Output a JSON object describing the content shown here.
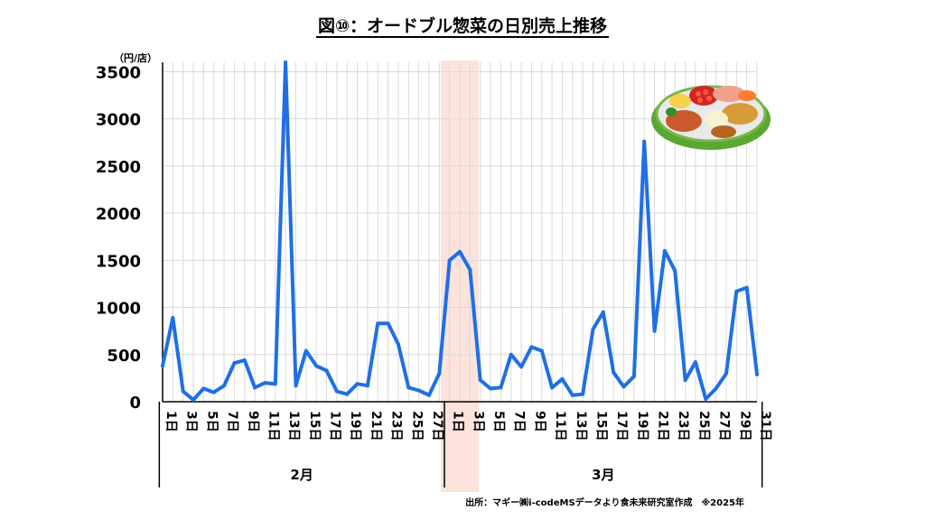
{
  "title": "図⑩：オードブル惣菜の日別売上推移",
  "source": "出所：マギー㈱i-codeMSデータより食未来研究室作成　※2025年",
  "illustration": "hors-d-oeuvre-platter-icon",
  "colors": {
    "line": "#1f6fe6",
    "highlight": "#fde3dc",
    "grid": "#d9d9d9"
  },
  "chart_data": {
    "type": "line",
    "ylabel": "（円/店）",
    "ylim": [
      0,
      3600
    ],
    "yticks": [
      0,
      500,
      1000,
      1500,
      2000,
      2500,
      3000,
      3500
    ],
    "grid": true,
    "highlight_range": [
      "3月1日",
      "3月3日"
    ],
    "groups": [
      {
        "label": "2月",
        "days": 28
      },
      {
        "label": "3月",
        "days": 31
      }
    ],
    "tick_labels": [
      "1日",
      "3日",
      "5日",
      "7日",
      "9日",
      "11日",
      "13日",
      "15日",
      "17日",
      "19日",
      "21日",
      "23日",
      "25日",
      "27日",
      "1日",
      "3日",
      "5日",
      "7日",
      "9日",
      "11日",
      "13日",
      "15日",
      "17日",
      "19日",
      "21日",
      "23日",
      "25日",
      "27日",
      "29日",
      "31日"
    ],
    "series": [
      {
        "values": [
          380,
          890,
          110,
          20,
          140,
          100,
          170,
          410,
          440,
          150,
          200,
          190,
          3600,
          170,
          540,
          380,
          330,
          110,
          80,
          190,
          170,
          830,
          830,
          610,
          150,
          120,
          70,
          300,
          1500,
          1590,
          1400,
          230,
          140,
          150,
          500,
          370,
          580,
          540,
          150,
          240,
          70,
          80,
          770,
          950,
          310,
          160,
          270,
          2760,
          750,
          1600,
          1390,
          230,
          420,
          30,
          140,
          300,
          1170,
          1210,
          290
        ]
      }
    ]
  }
}
